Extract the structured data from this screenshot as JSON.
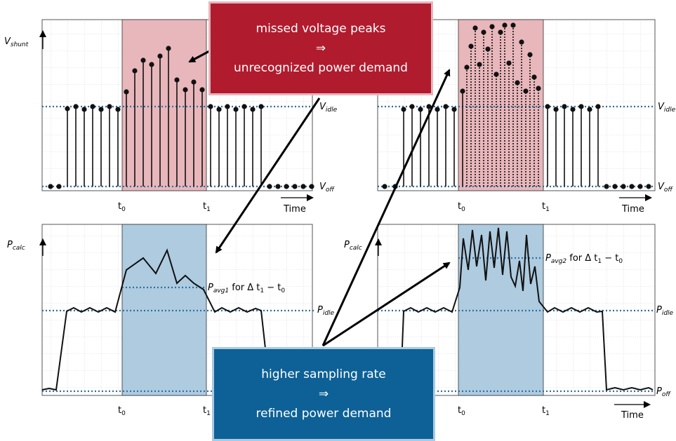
{
  "panels": {
    "top": {
      "y_axis_label": "V",
      "y_axis_sub": "shunt",
      "x_axis_label": "Time",
      "t0_label": "t",
      "t0_sub": "0",
      "t1_label": "t",
      "t1_sub": "1",
      "idle_label": "V",
      "idle_sub": "idle",
      "off_label": "V",
      "off_sub": "off"
    },
    "bottom": {
      "y_axis_label": "P",
      "y_axis_sub": "calc",
      "x_axis_label": "Time",
      "t0_label": "t",
      "t0_sub": "0",
      "t1_label": "t",
      "t1_sub": "1",
      "idle_label": "P",
      "idle_sub": "idle",
      "off_label": "P",
      "off_sub": "off",
      "avg1_label": "P",
      "avg1_sub": "avg1",
      "avg2_label": "P",
      "avg2_sub": "avg2",
      "avg_suffix": " for Δ t",
      "avg_suffix_sub1": "1",
      "avg_minus": " − t",
      "avg_suffix_sub0": "0"
    }
  },
  "callouts": {
    "red": {
      "line1": "missed voltage peaks",
      "line2": "⇒",
      "line3": "unrecognized power demand"
    },
    "blue": {
      "line1": "higher sampling rate",
      "line2": "⇒",
      "line3": "refined power demand"
    }
  },
  "colors": {
    "red_box": "#b11b2e",
    "blue_box": "#0d6196",
    "red_highlight": "#e8b7bb",
    "blue_highlight": "#aecbe0",
    "dotted_line": "#2f6f9f"
  }
}
